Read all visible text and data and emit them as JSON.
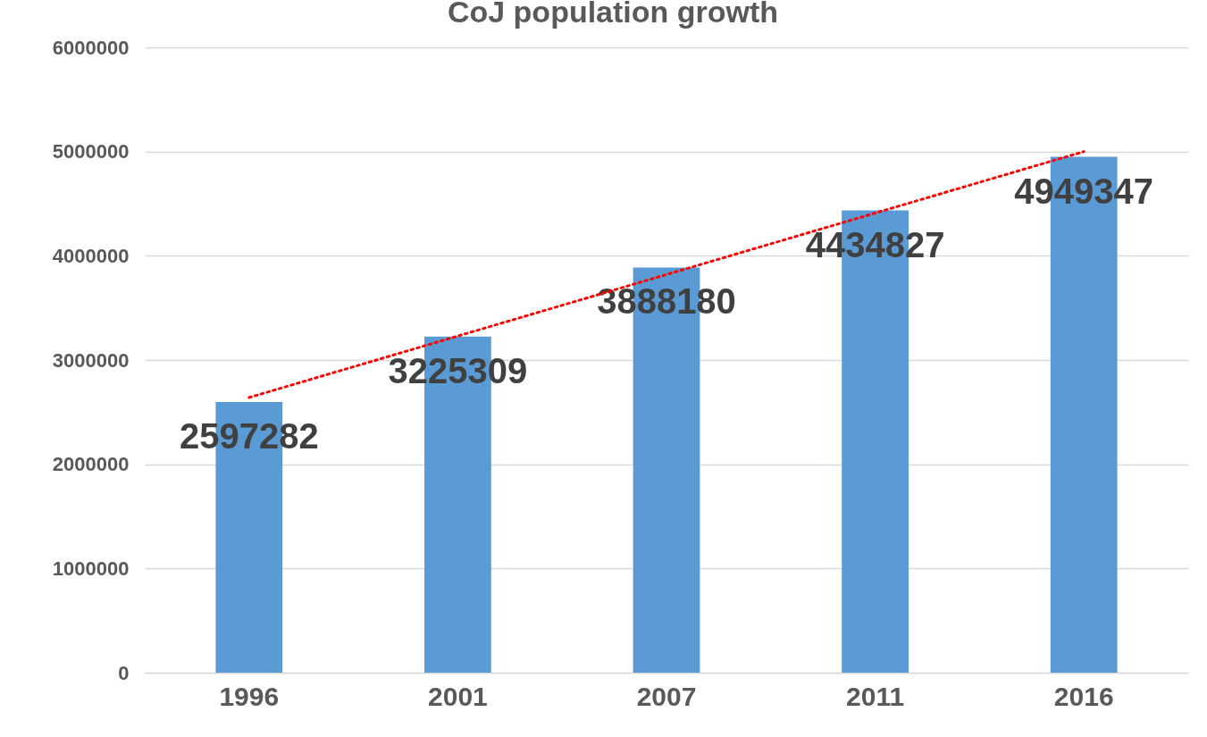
{
  "chart_data": {
    "type": "bar",
    "title": "CoJ population growth",
    "categories": [
      "1996",
      "2001",
      "2007",
      "2011",
      "2016"
    ],
    "series": [
      {
        "color": "#5b9bd5",
        "values": [
          2597282,
          3225309,
          3888180,
          4434827,
          4949347
        ],
        "value_labels": [
          "2597282",
          "3225309",
          "3888180",
          "4434827",
          "4949347"
        ]
      },
      {
        "type": "line",
        "color": "#ff0000",
        "line_style": "dotted",
        "values": [
          2640000,
          3230000,
          3820000,
          4410000,
          5000000
        ]
      }
    ],
    "ylim": [
      0,
      6000000
    ],
    "yticks": [
      0,
      1000000,
      2000000,
      3000000,
      4000000,
      5000000,
      6000000
    ],
    "grid": "y"
  }
}
